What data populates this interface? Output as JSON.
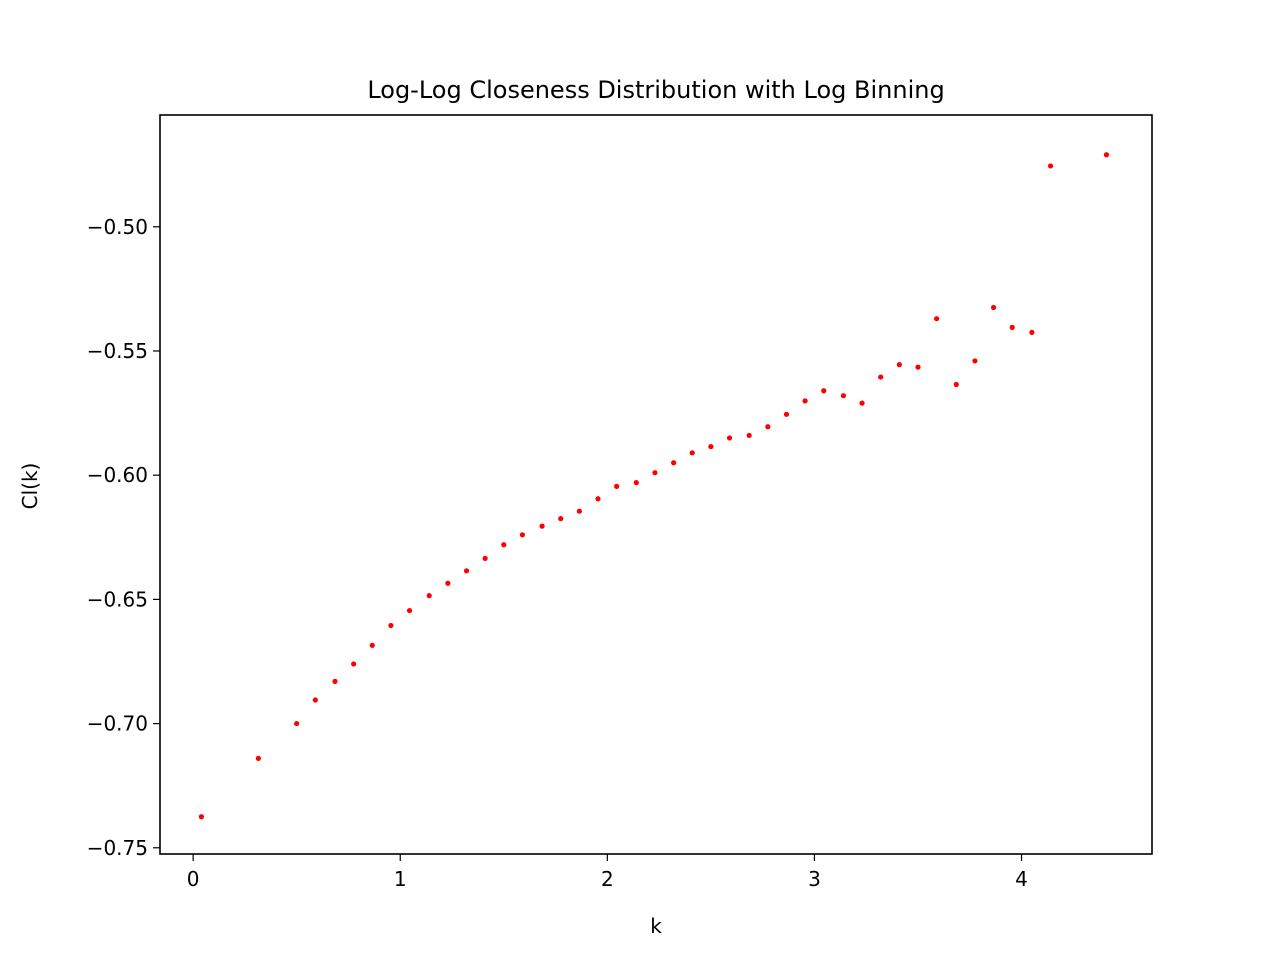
{
  "chart_data": {
    "type": "scatter",
    "title": "Log-Log Closeness Distribution with Log Binning",
    "xlabel": "k",
    "ylabel": "Cl(k)",
    "xlim": [
      -0.16,
      4.63
    ],
    "ylim": [
      -0.7525,
      -0.455
    ],
    "xticks": [
      0,
      1,
      2,
      3,
      4
    ],
    "xtick_labels": [
      "0",
      "1",
      "2",
      "3",
      "4"
    ],
    "yticks": [
      -0.75,
      -0.7,
      -0.65,
      -0.6,
      -0.55,
      -0.5
    ],
    "ytick_labels": [
      "−0.75",
      "−0.70",
      "−0.65",
      "−0.60",
      "−0.55",
      "−0.50"
    ],
    "grid": false,
    "marker_color": "#ff0000",
    "series": [
      {
        "x": [
          0.04,
          0.315,
          0.5,
          0.59,
          0.685,
          0.775,
          0.865,
          0.955,
          1.045,
          1.14,
          1.23,
          1.32,
          1.41,
          1.5,
          1.59,
          1.685,
          1.775,
          1.865,
          1.955,
          2.045,
          2.14,
          2.23,
          2.32,
          2.41,
          2.5,
          2.59,
          2.685,
          2.775,
          2.865,
          2.955,
          3.045,
          3.14,
          3.23,
          3.32,
          3.41,
          3.5,
          3.59,
          3.685,
          3.775,
          3.865,
          3.955,
          4.05,
          4.14,
          4.41
        ],
        "y": [
          -0.7375,
          -0.714,
          -0.7,
          -0.6905,
          -0.683,
          -0.676,
          -0.6685,
          -0.6605,
          -0.6545,
          -0.6485,
          -0.6435,
          -0.6385,
          -0.6335,
          -0.628,
          -0.624,
          -0.6205,
          -0.6175,
          -0.6145,
          -0.6095,
          -0.6045,
          -0.603,
          -0.599,
          -0.595,
          -0.591,
          -0.5885,
          -0.585,
          -0.584,
          -0.5805,
          -0.5755,
          -0.5701,
          -0.566,
          -0.568,
          -0.571,
          -0.5605,
          -0.5555,
          -0.5565,
          -0.537,
          -0.5635,
          -0.554,
          -0.5325,
          -0.5405,
          -0.5425,
          -0.4755,
          -0.471
        ]
      }
    ]
  }
}
